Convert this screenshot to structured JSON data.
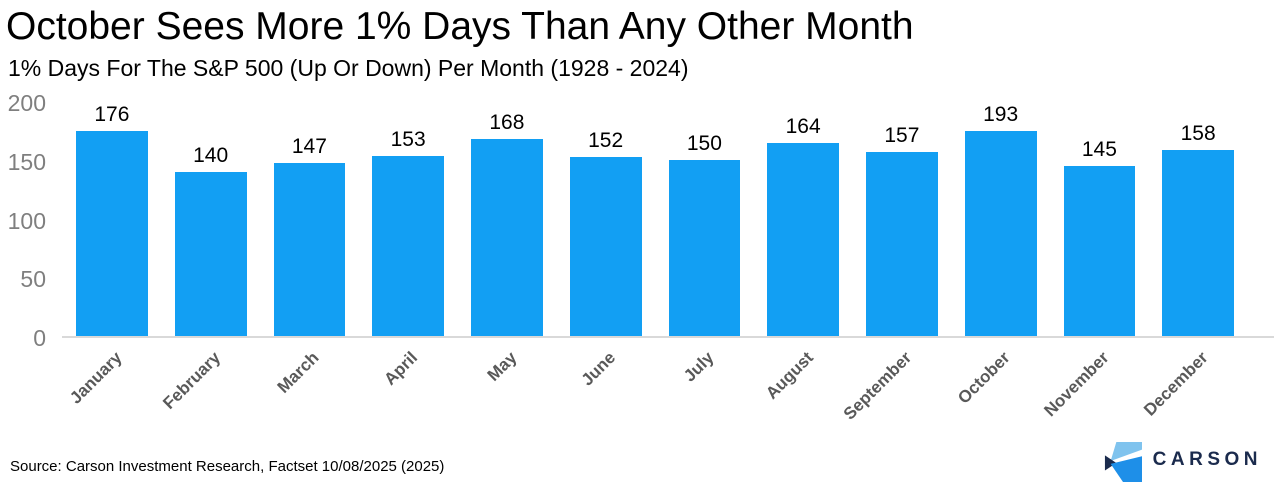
{
  "header": {
    "title": "October Sees More 1% Days Than Any Other Month",
    "subtitle": "1% Days For The S&P 500 (Up Or Down) Per Month (1928 - 2024)"
  },
  "chart_data": {
    "type": "bar",
    "title": "October Sees More 1% Days Than Any Other Month",
    "subtitle": "1% Days For The S&P 500 (Up Or Down) Per Month (1928 - 2024)",
    "categories": [
      "January",
      "February",
      "March",
      "April",
      "May",
      "June",
      "July",
      "August",
      "September",
      "October",
      "November",
      "December"
    ],
    "values": [
      176,
      140,
      147,
      153,
      168,
      152,
      150,
      164,
      157,
      193,
      145,
      158
    ],
    "data_labels": [
      176,
      140,
      147,
      153,
      168,
      152,
      150,
      164,
      157,
      193,
      145,
      158
    ],
    "xlabel": "",
    "ylabel": "",
    "ylim": [
      0,
      200
    ],
    "yticks": [
      0,
      50,
      100,
      150,
      200
    ],
    "grid": false,
    "legend": false,
    "bar_color": "#129ff3",
    "tick_label_color": "#7f7f7f",
    "category_label_color": "#595959"
  },
  "footer": {
    "source": "Source: Carson Investment Research, Factset 10/08/2025 (2025)",
    "logo_text": "CARSON"
  },
  "colors": {
    "bar": "#129ff3",
    "axis_line": "#d9d9d9",
    "logo_light_blue": "#7fc3ee",
    "logo_blue": "#1e8fe8",
    "logo_navy": "#1b2b4d"
  }
}
